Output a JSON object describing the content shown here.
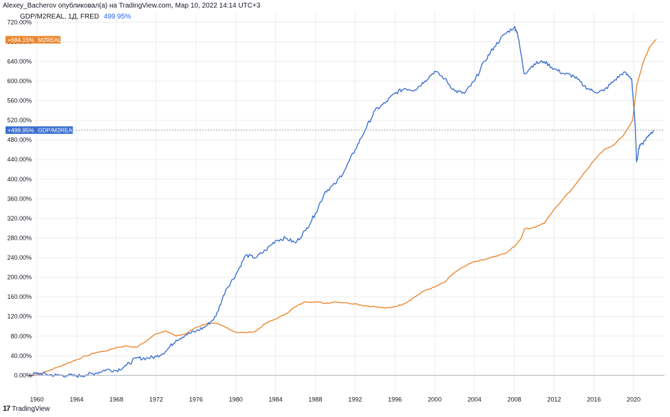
{
  "header": {
    "publisher": "Alexey_Bacherov опубликовал(а) на TradingView.com, Мар 10, 2022 14:14 UTC+3"
  },
  "legend": {
    "symbol": "GDP/M2REAL, 1Д, FRED",
    "value": "499.95%"
  },
  "footer": {
    "brand": "TradingView"
  },
  "colors": {
    "gdp_m2real": "#3b6fd0",
    "m2real": "#e9862f",
    "gridline": "#ececec",
    "axis": "#b2b5be"
  },
  "chart_data": {
    "type": "line",
    "x_unit": "year",
    "y_unit": "percent",
    "xlim": [
      1956.3,
      2023.1
    ],
    "ylim": [
      -40,
      740
    ],
    "x_ticks": [
      1960,
      1964,
      1968,
      1972,
      1976,
      1980,
      1984,
      1988,
      1992,
      1996,
      2000,
      2004,
      2008,
      2012,
      2016,
      2020
    ],
    "y_ticks": [
      0,
      40,
      80,
      120,
      160,
      200,
      240,
      280,
      320,
      360,
      400,
      440,
      480,
      520,
      560,
      600,
      640,
      680,
      720
    ],
    "y_tick_labels": [
      "0.00%",
      "40.00%",
      "80.00%",
      "120.00%",
      "160.00%",
      "200.00%",
      "240.00%",
      "280.00%",
      "320.00%",
      "360.00%",
      "400.00%",
      "440.00%",
      "480.00%",
      "520.00%",
      "560.00%",
      "600.00%",
      "640.00%",
      "680.00%",
      "720.00%"
    ],
    "series": [
      {
        "name": "GDP/M2REAL",
        "last_value_label": "+499.95%",
        "last_value": 499.95,
        "points": [
          [
            1959.2,
            0
          ],
          [
            1960,
            4
          ],
          [
            1961,
            2
          ],
          [
            1962,
            0
          ],
          [
            1963,
            0
          ],
          [
            1964,
            -1
          ],
          [
            1965,
            1
          ],
          [
            1966,
            5
          ],
          [
            1967,
            12
          ],
          [
            1968,
            10
          ],
          [
            1969,
            20
          ],
          [
            1970,
            35
          ],
          [
            1971,
            35
          ],
          [
            1972,
            38
          ],
          [
            1973,
            50
          ],
          [
            1974,
            72
          ],
          [
            1975,
            83
          ],
          [
            1976,
            90
          ],
          [
            1977,
            100
          ],
          [
            1978,
            120
          ],
          [
            1979,
            175
          ],
          [
            1980,
            205
          ],
          [
            1981,
            245
          ],
          [
            1982,
            240
          ],
          [
            1983,
            255
          ],
          [
            1984,
            275
          ],
          [
            1985,
            280
          ],
          [
            1986,
            270
          ],
          [
            1987,
            295
          ],
          [
            1988,
            330
          ],
          [
            1989,
            375
          ],
          [
            1990,
            390
          ],
          [
            1991,
            420
          ],
          [
            1992,
            460
          ],
          [
            1993,
            500
          ],
          [
            1994,
            540
          ],
          [
            1995,
            555
          ],
          [
            1996,
            575
          ],
          [
            1997,
            585
          ],
          [
            1998,
            582
          ],
          [
            1999,
            600
          ],
          [
            2000,
            620
          ],
          [
            2001,
            605
          ],
          [
            2002,
            580
          ],
          [
            2003,
            575
          ],
          [
            2004,
            600
          ],
          [
            2005,
            640
          ],
          [
            2006,
            670
          ],
          [
            2007,
            695
          ],
          [
            2008,
            710
          ],
          [
            2008.3,
            700
          ],
          [
            2009,
            615
          ],
          [
            2010,
            635
          ],
          [
            2011,
            640
          ],
          [
            2012,
            625
          ],
          [
            2013,
            615
          ],
          [
            2014,
            610
          ],
          [
            2015,
            590
          ],
          [
            2016,
            578
          ],
          [
            2017,
            580
          ],
          [
            2018,
            600
          ],
          [
            2019,
            618
          ],
          [
            2019.8,
            605
          ],
          [
            2020.15,
            510
          ],
          [
            2020.3,
            435
          ],
          [
            2020.6,
            470
          ],
          [
            2021,
            475
          ],
          [
            2021.5,
            490
          ],
          [
            2022,
            500
          ]
        ]
      },
      {
        "name": "M2REAL",
        "last_value_label": "+684.15%",
        "last_value": 684.15,
        "points": [
          [
            1959.2,
            0
          ],
          [
            1960,
            2
          ],
          [
            1961,
            8
          ],
          [
            1962,
            16
          ],
          [
            1963,
            24
          ],
          [
            1964,
            32
          ],
          [
            1965,
            40
          ],
          [
            1966,
            47
          ],
          [
            1967,
            50
          ],
          [
            1968,
            57
          ],
          [
            1969,
            60
          ],
          [
            1970,
            57
          ],
          [
            1971,
            70
          ],
          [
            1972,
            85
          ],
          [
            1973,
            91
          ],
          [
            1974,
            80
          ],
          [
            1975,
            85
          ],
          [
            1976,
            98
          ],
          [
            1977,
            105
          ],
          [
            1978,
            106
          ],
          [
            1979,
            98
          ],
          [
            1980,
            88
          ],
          [
            1981,
            87
          ],
          [
            1982,
            90
          ],
          [
            1983,
            106
          ],
          [
            1984,
            115
          ],
          [
            1985,
            125
          ],
          [
            1986,
            140
          ],
          [
            1987,
            150
          ],
          [
            1988,
            150
          ],
          [
            1989,
            147
          ],
          [
            1990,
            150
          ],
          [
            1991,
            148
          ],
          [
            1992,
            146
          ],
          [
            1993,
            142
          ],
          [
            1994,
            140
          ],
          [
            1995,
            137
          ],
          [
            1996,
            140
          ],
          [
            1997,
            147
          ],
          [
            1998,
            160
          ],
          [
            1999,
            173
          ],
          [
            2000,
            180
          ],
          [
            2001,
            190
          ],
          [
            2002,
            210
          ],
          [
            2003,
            222
          ],
          [
            2004,
            232
          ],
          [
            2005,
            236
          ],
          [
            2006,
            242
          ],
          [
            2007,
            248
          ],
          [
            2008,
            262
          ],
          [
            2008.7,
            280
          ],
          [
            2009,
            298
          ],
          [
            2010,
            302
          ],
          [
            2011,
            310
          ],
          [
            2012,
            338
          ],
          [
            2013,
            362
          ],
          [
            2014,
            385
          ],
          [
            2015,
            412
          ],
          [
            2016,
            438
          ],
          [
            2017,
            460
          ],
          [
            2018,
            470
          ],
          [
            2019,
            490
          ],
          [
            2019.9,
            520
          ],
          [
            2020.3,
            590
          ],
          [
            2021,
            640
          ],
          [
            2021.6,
            670
          ],
          [
            2022.3,
            685
          ]
        ]
      }
    ]
  }
}
